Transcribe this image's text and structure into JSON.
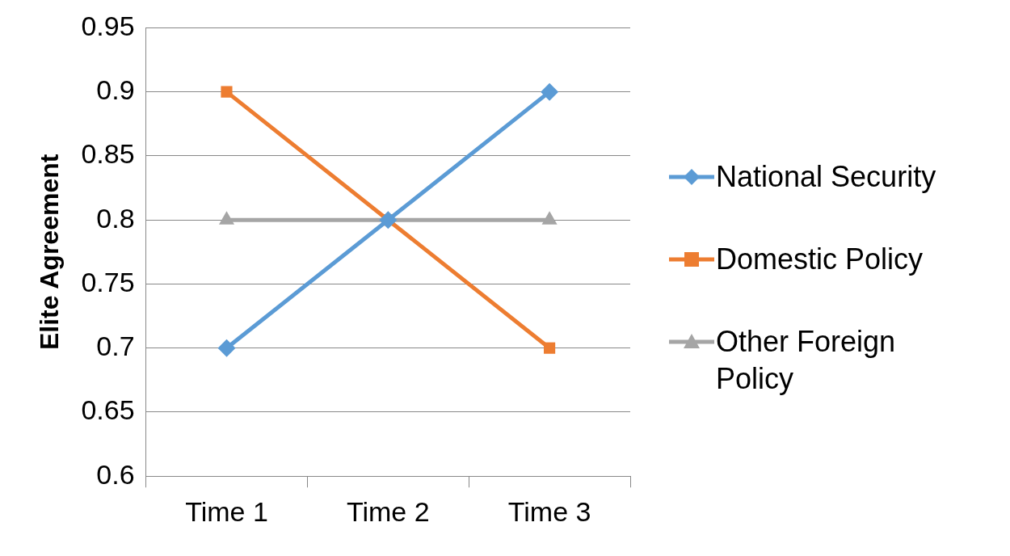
{
  "chart_data": {
    "type": "line",
    "ylabel": "Elite Agreement",
    "categories": [
      "Time 1",
      "Time 2",
      "Time 3"
    ],
    "series": [
      {
        "name": "National Security",
        "color": "#5b9bd5",
        "marker": "diamond",
        "values": [
          0.7,
          0.8,
          0.9
        ]
      },
      {
        "name": "Domestic Policy",
        "color": "#ed7d31",
        "marker": "square",
        "values": [
          0.9,
          0.8,
          0.7
        ]
      },
      {
        "name": "Other Foreign Policy",
        "color": "#a5a5a5",
        "marker": "triangle",
        "values": [
          0.8,
          0.8,
          0.8
        ]
      }
    ],
    "ylim": [
      0.6,
      0.95
    ],
    "yticks": [
      0.6,
      0.65,
      0.7,
      0.75,
      0.8,
      0.85,
      0.9,
      0.95
    ],
    "grid": "y",
    "legend": "right",
    "line_style": "solid"
  }
}
